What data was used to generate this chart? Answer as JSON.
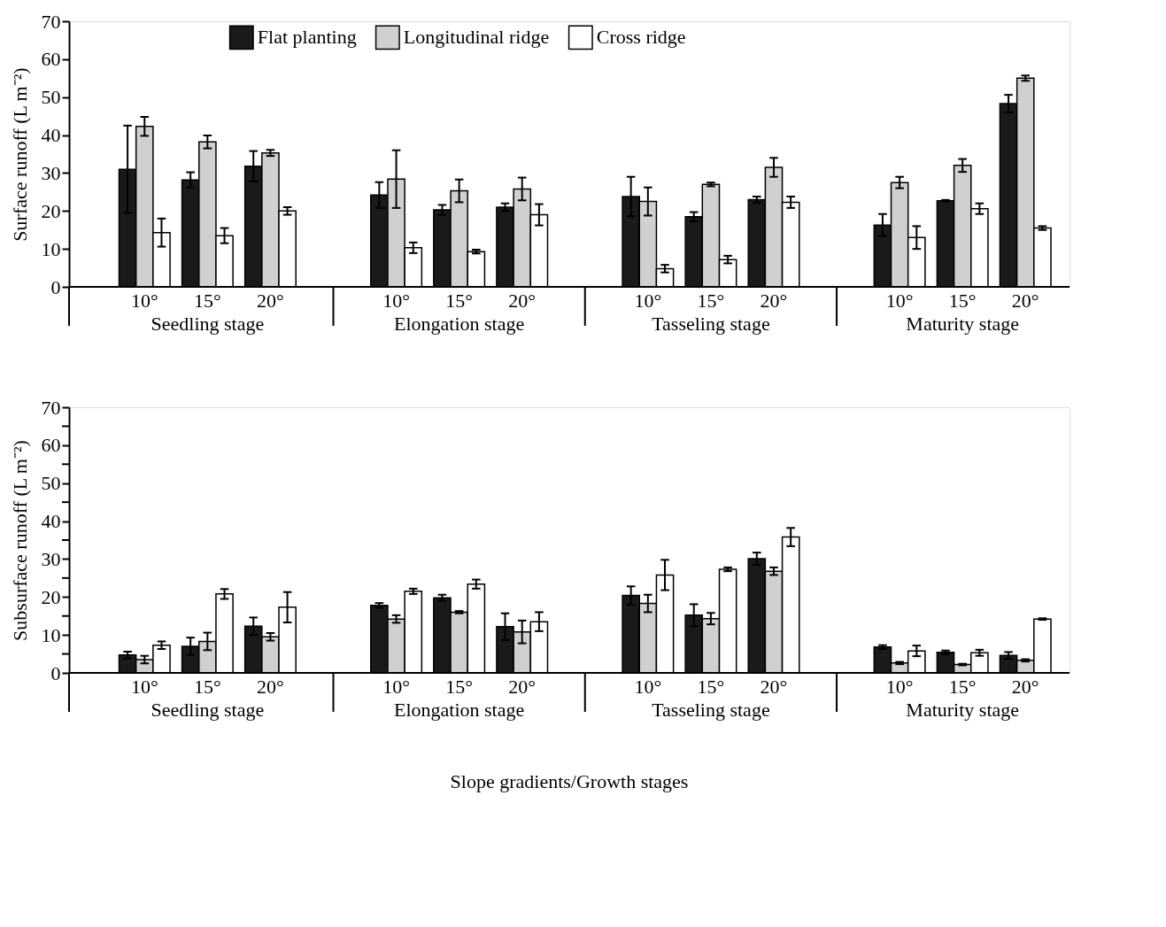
{
  "chart_data": [
    {
      "type": "bar",
      "ylabel": "Surface runoff (L m⁻²)",
      "categories": [
        "10°",
        "15°",
        "20°",
        "10°",
        "15°",
        "20°",
        "10°",
        "15°",
        "20°",
        "10°",
        "15°",
        "20°"
      ],
      "annotations": [
        "Seedling stage",
        "Elongation stage",
        "Tasseling stage",
        "Maturity stage"
      ],
      "ylim": [
        0,
        70
      ],
      "yticks": [
        0,
        10,
        20,
        30,
        40,
        50,
        60,
        70
      ],
      "grid": false,
      "legend": "top",
      "series": [
        {
          "name": "Flat planting",
          "color": "#1a1a1a",
          "values": [
            31,
            28.2,
            31.8,
            24.2,
            20.3,
            21,
            23.8,
            18.5,
            23,
            16.3,
            22.7,
            48.3
          ],
          "errors": [
            11.5,
            2,
            4,
            3.4,
            1.3,
            1,
            5.2,
            1.2,
            0.8,
            2.9,
            0.2,
            2.3
          ]
        },
        {
          "name": "Longitudinal ridge",
          "color": "#d0d0d0",
          "values": [
            42.3,
            38.2,
            35.3,
            28.4,
            25.3,
            25.8,
            22.5,
            27,
            31.5,
            27.5,
            32,
            55
          ],
          "errors": [
            2.5,
            1.7,
            0.8,
            7.6,
            3,
            3,
            3.7,
            0.5,
            2.5,
            1.5,
            1.7,
            0.7
          ]
        },
        {
          "name": "Cross ridge",
          "color": "#ffffff",
          "values": [
            14.3,
            13.5,
            20,
            10.3,
            9.3,
            19,
            4.8,
            7.2,
            22.3,
            13,
            20.6,
            15.5
          ],
          "errors": [
            3.7,
            2,
            1,
            1.4,
            0.5,
            2.8,
            1,
            1,
            1.5,
            3,
            1.4,
            0.5
          ]
        }
      ]
    },
    {
      "type": "bar",
      "ylabel": "Subsurface runoff (L m⁻²)",
      "xlabel": "Slope gradients/Growth stages",
      "categories": [
        "10°",
        "15°",
        "20°",
        "10°",
        "15°",
        "20°",
        "10°",
        "15°",
        "20°",
        "10°",
        "15°",
        "20°"
      ],
      "annotations": [
        "Seedling stage",
        "Elongation stage",
        "Tasseling stage",
        "Maturity stage"
      ],
      "ylim": [
        0,
        70
      ],
      "yticks": [
        0,
        {
          "value": 5,
          "label": null
        },
        10,
        {
          "value": 15,
          "label": null
        },
        20,
        {
          "value": 25,
          "label": null
        },
        30,
        {
          "value": 35,
          "label": null
        },
        40,
        {
          "value": 45,
          "label": null
        },
        50,
        {
          "value": 55,
          "label": null
        },
        60,
        {
          "value": 65,
          "label": null
        },
        70
      ],
      "grid": false,
      "series": [
        {
          "color": "#1a1a1a",
          "values": [
            4.7,
            7,
            12.3,
            17.8,
            19.8,
            12.2,
            20.4,
            15.2,
            30.1,
            6.8,
            5.4,
            4.6
          ],
          "errors": [
            0.9,
            2.3,
            2.3,
            0.6,
            0.8,
            3.5,
            2.4,
            2.9,
            1.6,
            0.5,
            0.5,
            0.9
          ]
        },
        {
          "color": "#d0d0d0",
          "values": [
            3.5,
            8.3,
            9.5,
            14.2,
            16,
            10.8,
            18.3,
            14.3,
            26.8,
            2.6,
            2.2,
            3.3
          ],
          "errors": [
            1,
            2.3,
            1,
            1,
            0.3,
            3,
            2.3,
            1.5,
            1,
            0.3,
            0.2,
            0.3
          ]
        },
        {
          "color": "#ffffff",
          "values": [
            7.3,
            20.8,
            17.3,
            21.5,
            23.4,
            13.5,
            25.8,
            27.3,
            35.8,
            5.8,
            5.3,
            14.2
          ],
          "errors": [
            1,
            1.3,
            4,
            0.7,
            1.2,
            2.5,
            4,
            0.5,
            2.4,
            1.4,
            0.8,
            0.2
          ]
        }
      ]
    }
  ]
}
